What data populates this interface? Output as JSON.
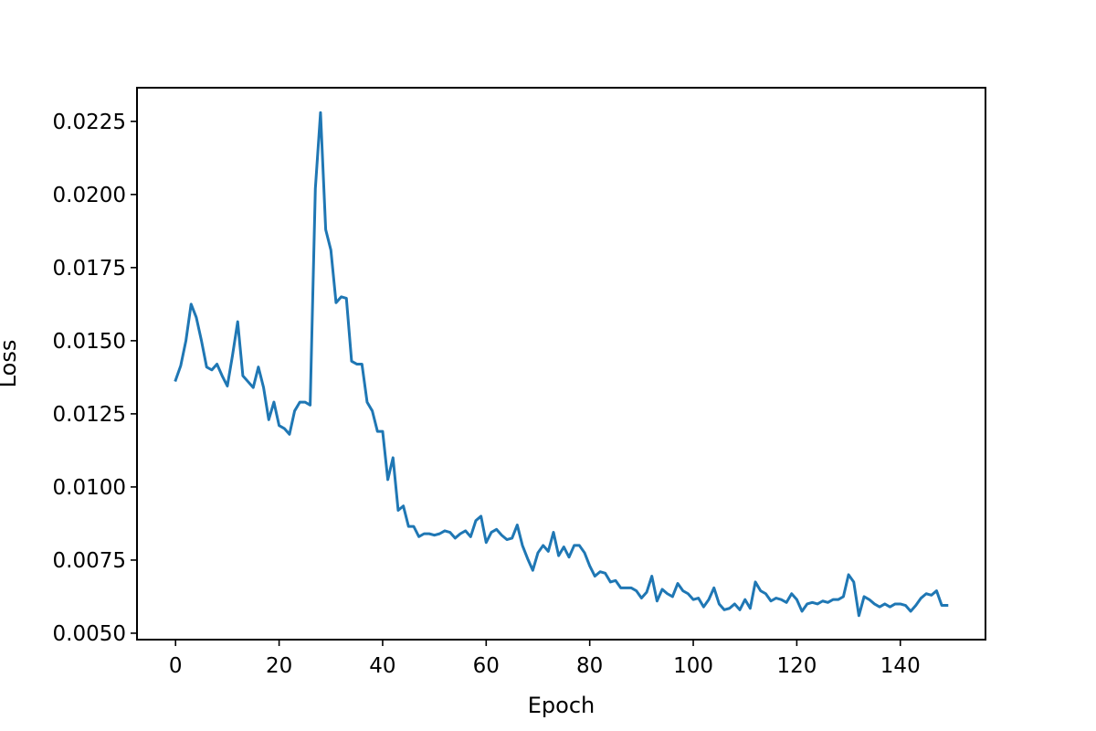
{
  "chart_data": {
    "type": "line",
    "title": "",
    "xlabel": "Epoch",
    "ylabel": "Loss",
    "xlim": [
      -7.45,
      156.45
    ],
    "ylim": [
      0.00478,
      0.02365
    ],
    "xticks": [
      {
        "value": 0,
        "label": "0"
      },
      {
        "value": 20,
        "label": "20"
      },
      {
        "value": 40,
        "label": "40"
      },
      {
        "value": 60,
        "label": "60"
      },
      {
        "value": 80,
        "label": "80"
      },
      {
        "value": 100,
        "label": "100"
      },
      {
        "value": 120,
        "label": "120"
      },
      {
        "value": 140,
        "label": "140"
      }
    ],
    "yticks": [
      {
        "value": 0.005,
        "label": "0.0050"
      },
      {
        "value": 0.0075,
        "label": "0.0075"
      },
      {
        "value": 0.01,
        "label": "0.0100"
      },
      {
        "value": 0.0125,
        "label": "0.0125"
      },
      {
        "value": 0.015,
        "label": "0.0150"
      },
      {
        "value": 0.0175,
        "label": "0.0175"
      },
      {
        "value": 0.02,
        "label": "0.0200"
      },
      {
        "value": 0.0225,
        "label": "0.0225"
      }
    ],
    "grid": false,
    "series": [
      {
        "color": "#1f77b4",
        "values": [
          0.01365,
          0.01415,
          0.015,
          0.01625,
          0.0158,
          0.015,
          0.0141,
          0.014,
          0.0142,
          0.0138,
          0.01345,
          0.0145,
          0.01565,
          0.0138,
          0.0136,
          0.0134,
          0.0141,
          0.0134,
          0.0123,
          0.0129,
          0.0121,
          0.012,
          0.0118,
          0.0126,
          0.0129,
          0.0129,
          0.0128,
          0.0202,
          0.0228,
          0.0188,
          0.0181,
          0.0163,
          0.0165,
          0.01645,
          0.0143,
          0.0142,
          0.0142,
          0.0129,
          0.0126,
          0.0119,
          0.0119,
          0.01025,
          0.011,
          0.0092,
          0.00935,
          0.00865,
          0.00865,
          0.0083,
          0.0084,
          0.0084,
          0.00835,
          0.0084,
          0.0085,
          0.00845,
          0.00825,
          0.0084,
          0.0085,
          0.0083,
          0.00885,
          0.009,
          0.0081,
          0.00845,
          0.00855,
          0.00835,
          0.0082,
          0.00825,
          0.0087,
          0.008,
          0.00755,
          0.00715,
          0.00775,
          0.008,
          0.0078,
          0.00845,
          0.00765,
          0.00795,
          0.0076,
          0.008,
          0.008,
          0.00775,
          0.0073,
          0.00695,
          0.0071,
          0.00705,
          0.00675,
          0.0068,
          0.00655,
          0.00655,
          0.00655,
          0.00645,
          0.0062,
          0.0064,
          0.00695,
          0.0061,
          0.0065,
          0.00635,
          0.00625,
          0.0067,
          0.00645,
          0.00635,
          0.00615,
          0.0062,
          0.0059,
          0.00615,
          0.00655,
          0.006,
          0.0058,
          0.00585,
          0.006,
          0.0058,
          0.00615,
          0.00585,
          0.00675,
          0.00645,
          0.00635,
          0.0061,
          0.0062,
          0.00615,
          0.00605,
          0.00635,
          0.00615,
          0.00575,
          0.006,
          0.00605,
          0.006,
          0.0061,
          0.00605,
          0.00615,
          0.00615,
          0.00625,
          0.007,
          0.00675,
          0.0056,
          0.00625,
          0.00615,
          0.006,
          0.0059,
          0.006,
          0.0059,
          0.006,
          0.006,
          0.00595,
          0.00575,
          0.00595,
          0.0062,
          0.00635,
          0.0063,
          0.00645,
          0.00595,
          0.00595
        ]
      }
    ]
  }
}
